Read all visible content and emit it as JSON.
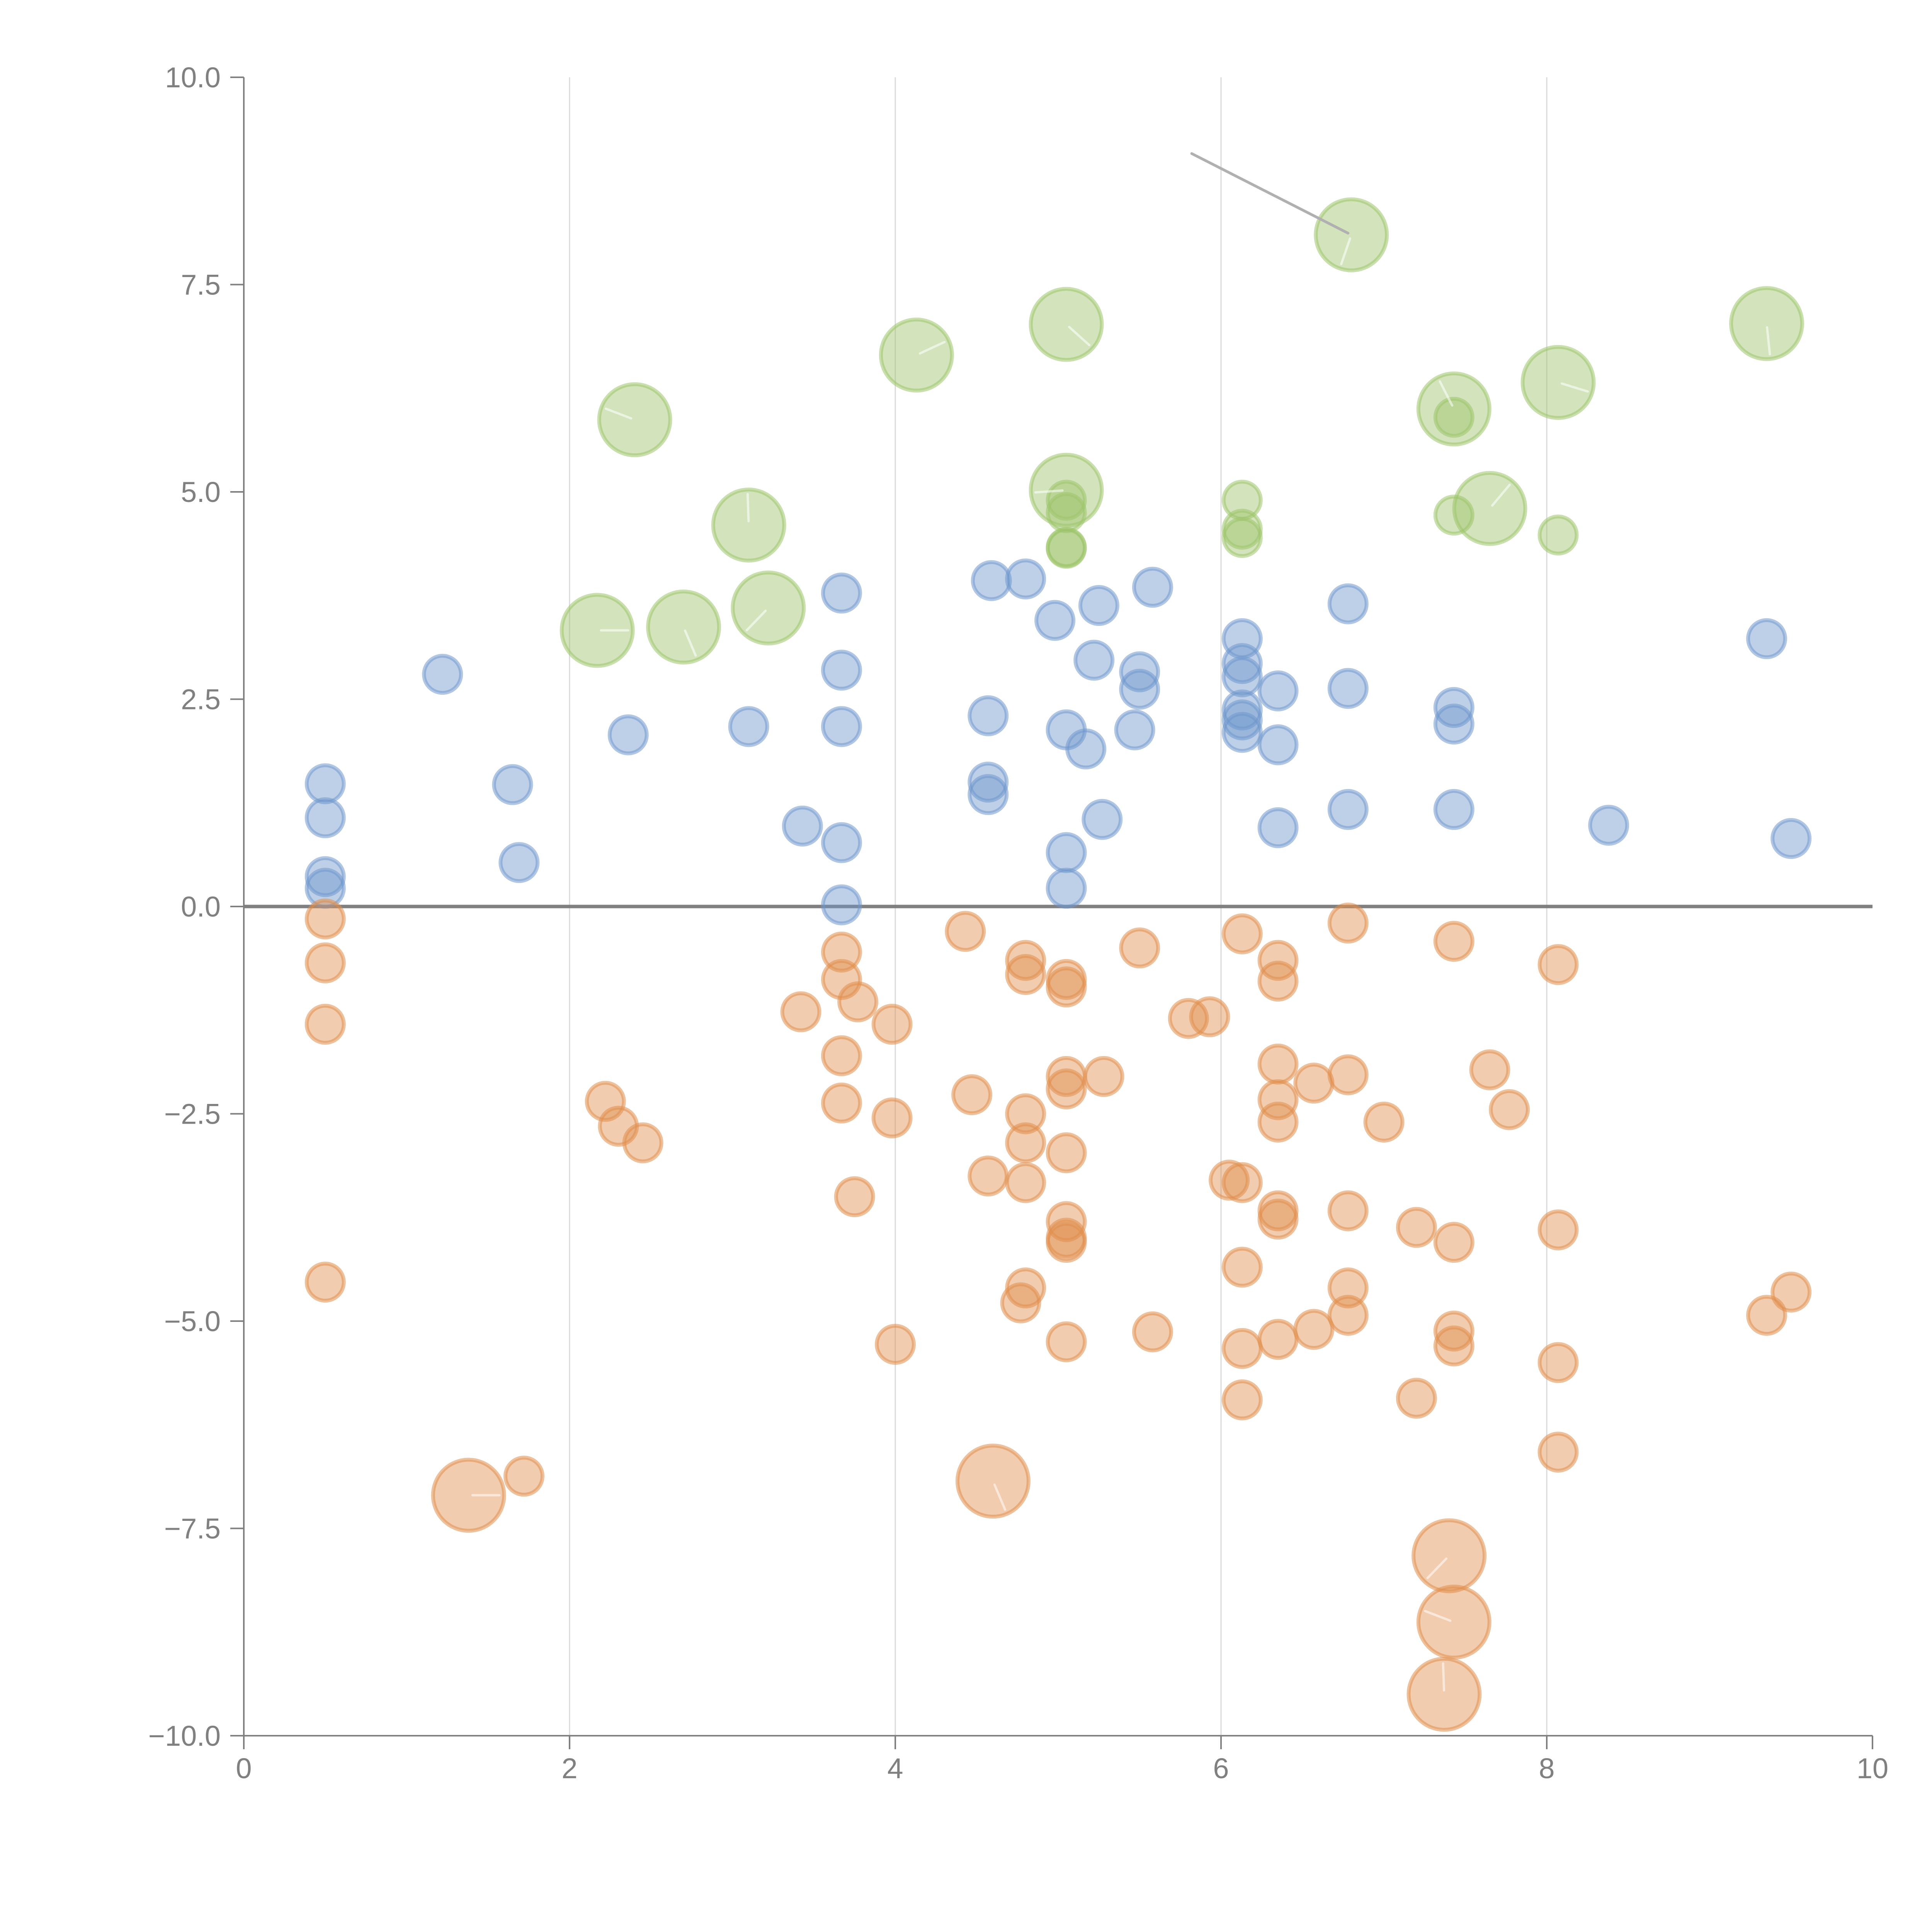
{
  "chart_data": {
    "type": "scatter",
    "title": "",
    "xlabel": "",
    "ylabel": "",
    "xlim": [
      0,
      10
    ],
    "ylim": [
      -10,
      10
    ],
    "x_ticks": [
      0,
      2,
      4,
      6,
      8,
      10
    ],
    "x_tick_labels": [
      "0",
      "2",
      "4",
      "6",
      "8",
      "10"
    ],
    "y_ticks": [
      -10,
      -7.5,
      -5,
      -2.5,
      0,
      2.5,
      5,
      7.5,
      10
    ],
    "y_tick_labels": [
      "−10.0",
      "−7.5",
      "−5.0",
      "−2.5",
      "0.0",
      "2.5",
      "5.0",
      "7.5",
      "10.0"
    ],
    "grid": "vertical",
    "reference_line_y": 0,
    "legend": "none",
    "size_levels": [
      "small",
      "large"
    ],
    "annotation_leader": {
      "from": [
        5.82,
        9.08
      ],
      "to": [
        6.78,
        8.12
      ]
    },
    "series": [
      {
        "name": "green",
        "color": "#9dc46a",
        "points": [
          {
            "x": 2.17,
            "y": 3.33,
            "size": "large"
          },
          {
            "x": 2.7,
            "y": 3.37,
            "size": "large"
          },
          {
            "x": 3.22,
            "y": 3.6,
            "size": "large"
          },
          {
            "x": 2.4,
            "y": 5.87,
            "size": "large"
          },
          {
            "x": 3.1,
            "y": 4.6,
            "size": "large"
          },
          {
            "x": 4.13,
            "y": 6.65,
            "size": "large"
          },
          {
            "x": 5.05,
            "y": 7.02,
            "size": "large"
          },
          {
            "x": 6.8,
            "y": 8.1,
            "size": "large"
          },
          {
            "x": 5.05,
            "y": 5.02,
            "size": "large"
          },
          {
            "x": 7.43,
            "y": 6.0,
            "size": "large"
          },
          {
            "x": 7.65,
            "y": 4.8,
            "size": "large"
          },
          {
            "x": 8.07,
            "y": 6.32,
            "size": "large"
          },
          {
            "x": 9.35,
            "y": 7.03,
            "size": "large"
          },
          {
            "x": 5.05,
            "y": 4.9,
            "size": "small"
          },
          {
            "x": 5.05,
            "y": 4.75,
            "size": "small"
          },
          {
            "x": 5.05,
            "y": 4.33,
            "size": "small"
          },
          {
            "x": 5.05,
            "y": 4.32,
            "size": "small"
          },
          {
            "x": 6.13,
            "y": 4.9,
            "size": "small"
          },
          {
            "x": 6.13,
            "y": 4.55,
            "size": "small"
          },
          {
            "x": 6.13,
            "y": 4.45,
            "size": "small"
          },
          {
            "x": 7.43,
            "y": 5.9,
            "size": "small"
          },
          {
            "x": 7.43,
            "y": 4.72,
            "size": "small"
          },
          {
            "x": 8.07,
            "y": 4.48,
            "size": "small"
          }
        ]
      },
      {
        "name": "blue",
        "color": "#6f97cc",
        "points": [
          {
            "x": 0.5,
            "y": 1.48,
            "size": "small"
          },
          {
            "x": 0.5,
            "y": 1.07,
            "size": "small"
          },
          {
            "x": 0.5,
            "y": 0.36,
            "size": "small"
          },
          {
            "x": 0.5,
            "y": 0.22,
            "size": "small"
          },
          {
            "x": 1.22,
            "y": 2.8,
            "size": "small"
          },
          {
            "x": 1.65,
            "y": 1.47,
            "size": "small"
          },
          {
            "x": 1.69,
            "y": 0.53,
            "size": "small"
          },
          {
            "x": 2.36,
            "y": 2.07,
            "size": "small"
          },
          {
            "x": 3.1,
            "y": 2.17,
            "size": "small"
          },
          {
            "x": 3.43,
            "y": 0.97,
            "size": "small"
          },
          {
            "x": 3.67,
            "y": 3.78,
            "size": "small"
          },
          {
            "x": 3.67,
            "y": 2.85,
            "size": "small"
          },
          {
            "x": 3.67,
            "y": 2.17,
            "size": "small"
          },
          {
            "x": 3.67,
            "y": 0.77,
            "size": "small"
          },
          {
            "x": 3.67,
            "y": 0.02,
            "size": "small"
          },
          {
            "x": 4.59,
            "y": 3.93,
            "size": "small"
          },
          {
            "x": 4.8,
            "y": 3.95,
            "size": "small"
          },
          {
            "x": 4.98,
            "y": 3.45,
            "size": "small"
          },
          {
            "x": 5.25,
            "y": 3.63,
            "size": "small"
          },
          {
            "x": 5.58,
            "y": 3.85,
            "size": "small"
          },
          {
            "x": 5.22,
            "y": 2.97,
            "size": "small"
          },
          {
            "x": 5.5,
            "y": 2.83,
            "size": "small"
          },
          {
            "x": 5.5,
            "y": 2.62,
            "size": "small"
          },
          {
            "x": 4.57,
            "y": 2.3,
            "size": "small"
          },
          {
            "x": 5.05,
            "y": 2.13,
            "size": "small"
          },
          {
            "x": 5.17,
            "y": 1.9,
            "size": "small"
          },
          {
            "x": 5.47,
            "y": 2.13,
            "size": "small"
          },
          {
            "x": 4.57,
            "y": 1.5,
            "size": "small"
          },
          {
            "x": 4.57,
            "y": 1.35,
            "size": "small"
          },
          {
            "x": 5.27,
            "y": 1.05,
            "size": "small"
          },
          {
            "x": 5.05,
            "y": 0.65,
            "size": "small"
          },
          {
            "x": 5.05,
            "y": 0.22,
            "size": "small"
          },
          {
            "x": 6.13,
            "y": 3.23,
            "size": "small"
          },
          {
            "x": 6.13,
            "y": 2.93,
            "size": "small"
          },
          {
            "x": 6.13,
            "y": 2.77,
            "size": "small"
          },
          {
            "x": 6.13,
            "y": 2.37,
            "size": "small"
          },
          {
            "x": 6.13,
            "y": 2.25,
            "size": "small"
          },
          {
            "x": 6.13,
            "y": 2.1,
            "size": "small"
          },
          {
            "x": 6.35,
            "y": 2.6,
            "size": "small"
          },
          {
            "x": 6.35,
            "y": 1.95,
            "size": "small"
          },
          {
            "x": 6.35,
            "y": 0.95,
            "size": "small"
          },
          {
            "x": 6.78,
            "y": 3.65,
            "size": "small"
          },
          {
            "x": 6.78,
            "y": 2.63,
            "size": "small"
          },
          {
            "x": 6.78,
            "y": 1.17,
            "size": "small"
          },
          {
            "x": 7.43,
            "y": 2.4,
            "size": "small"
          },
          {
            "x": 7.43,
            "y": 2.2,
            "size": "small"
          },
          {
            "x": 7.43,
            "y": 1.17,
            "size": "small"
          },
          {
            "x": 8.38,
            "y": 0.98,
            "size": "small"
          },
          {
            "x": 9.35,
            "y": 3.23,
            "size": "small"
          },
          {
            "x": 9.5,
            "y": 0.82,
            "size": "small"
          }
        ]
      },
      {
        "name": "orange",
        "color": "#e08e4c",
        "points": [
          {
            "x": 0.5,
            "y": -0.15,
            "size": "small"
          },
          {
            "x": 0.5,
            "y": -0.68,
            "size": "small"
          },
          {
            "x": 0.5,
            "y": -1.42,
            "size": "small"
          },
          {
            "x": 0.5,
            "y": -4.53,
            "size": "small"
          },
          {
            "x": 1.72,
            "y": -6.87,
            "size": "small"
          },
          {
            "x": 2.22,
            "y": -2.35,
            "size": "small"
          },
          {
            "x": 2.3,
            "y": -2.65,
            "size": "small"
          },
          {
            "x": 2.45,
            "y": -2.85,
            "size": "small"
          },
          {
            "x": 3.42,
            "y": -1.27,
            "size": "small"
          },
          {
            "x": 3.67,
            "y": -0.55,
            "size": "small"
          },
          {
            "x": 3.67,
            "y": -0.88,
            "size": "small"
          },
          {
            "x": 3.77,
            "y": -1.15,
            "size": "small"
          },
          {
            "x": 3.67,
            "y": -1.8,
            "size": "small"
          },
          {
            "x": 3.67,
            "y": -2.37,
            "size": "small"
          },
          {
            "x": 3.75,
            "y": -3.5,
            "size": "small"
          },
          {
            "x": 3.98,
            "y": -1.42,
            "size": "small"
          },
          {
            "x": 3.98,
            "y": -2.55,
            "size": "small"
          },
          {
            "x": 4.0,
            "y": -5.28,
            "size": "small"
          },
          {
            "x": 4.43,
            "y": -0.3,
            "size": "small"
          },
          {
            "x": 4.47,
            "y": -2.27,
            "size": "small"
          },
          {
            "x": 4.57,
            "y": -3.25,
            "size": "small"
          },
          {
            "x": 4.8,
            "y": -0.65,
            "size": "small"
          },
          {
            "x": 4.8,
            "y": -0.82,
            "size": "small"
          },
          {
            "x": 4.8,
            "y": -2.5,
            "size": "small"
          },
          {
            "x": 4.8,
            "y": -2.85,
            "size": "small"
          },
          {
            "x": 4.8,
            "y": -3.33,
            "size": "small"
          },
          {
            "x": 4.8,
            "y": -4.6,
            "size": "small"
          },
          {
            "x": 4.77,
            "y": -4.78,
            "size": "small"
          },
          {
            "x": 5.05,
            "y": -0.88,
            "size": "small"
          },
          {
            "x": 5.05,
            "y": -0.97,
            "size": "small"
          },
          {
            "x": 5.05,
            "y": -2.05,
            "size": "small"
          },
          {
            "x": 5.05,
            "y": -2.2,
            "size": "small"
          },
          {
            "x": 5.05,
            "y": -2.97,
            "size": "small"
          },
          {
            "x": 5.05,
            "y": -3.8,
            "size": "small"
          },
          {
            "x": 5.05,
            "y": -4.0,
            "size": "small"
          },
          {
            "x": 5.05,
            "y": -4.05,
            "size": "small"
          },
          {
            "x": 5.05,
            "y": -5.25,
            "size": "small"
          },
          {
            "x": 5.28,
            "y": -2.05,
            "size": "small"
          },
          {
            "x": 5.5,
            "y": -0.5,
            "size": "small"
          },
          {
            "x": 5.58,
            "y": -5.13,
            "size": "small"
          },
          {
            "x": 5.8,
            "y": -1.35,
            "size": "small"
          },
          {
            "x": 5.93,
            "y": -1.33,
            "size": "small"
          },
          {
            "x": 6.05,
            "y": -3.3,
            "size": "small"
          },
          {
            "x": 6.13,
            "y": -0.33,
            "size": "small"
          },
          {
            "x": 6.13,
            "y": -3.33,
            "size": "small"
          },
          {
            "x": 6.13,
            "y": -4.35,
            "size": "small"
          },
          {
            "x": 6.13,
            "y": -5.33,
            "size": "small"
          },
          {
            "x": 6.13,
            "y": -5.95,
            "size": "small"
          },
          {
            "x": 6.35,
            "y": -0.65,
            "size": "small"
          },
          {
            "x": 6.35,
            "y": -0.9,
            "size": "small"
          },
          {
            "x": 6.35,
            "y": -1.9,
            "size": "small"
          },
          {
            "x": 6.35,
            "y": -2.33,
            "size": "small"
          },
          {
            "x": 6.35,
            "y": -2.6,
            "size": "small"
          },
          {
            "x": 6.35,
            "y": -3.67,
            "size": "small"
          },
          {
            "x": 6.35,
            "y": -3.77,
            "size": "small"
          },
          {
            "x": 6.35,
            "y": -5.22,
            "size": "small"
          },
          {
            "x": 6.57,
            "y": -2.13,
            "size": "small"
          },
          {
            "x": 6.57,
            "y": -5.1,
            "size": "small"
          },
          {
            "x": 6.78,
            "y": -0.2,
            "size": "small"
          },
          {
            "x": 6.78,
            "y": -2.03,
            "size": "small"
          },
          {
            "x": 6.78,
            "y": -3.67,
            "size": "small"
          },
          {
            "x": 6.78,
            "y": -4.6,
            "size": "small"
          },
          {
            "x": 6.78,
            "y": -4.93,
            "size": "small"
          },
          {
            "x": 7.0,
            "y": -2.6,
            "size": "small"
          },
          {
            "x": 7.2,
            "y": -3.87,
            "size": "small"
          },
          {
            "x": 7.2,
            "y": -5.93,
            "size": "small"
          },
          {
            "x": 7.43,
            "y": -0.42,
            "size": "small"
          },
          {
            "x": 7.43,
            "y": -4.05,
            "size": "small"
          },
          {
            "x": 7.43,
            "y": -5.12,
            "size": "small"
          },
          {
            "x": 7.43,
            "y": -5.3,
            "size": "small"
          },
          {
            "x": 7.65,
            "y": -1.97,
            "size": "small"
          },
          {
            "x": 7.77,
            "y": -2.45,
            "size": "small"
          },
          {
            "x": 8.07,
            "y": -0.7,
            "size": "small"
          },
          {
            "x": 8.07,
            "y": -3.9,
            "size": "small"
          },
          {
            "x": 8.07,
            "y": -5.5,
            "size": "small"
          },
          {
            "x": 8.07,
            "y": -6.58,
            "size": "small"
          },
          {
            "x": 9.35,
            "y": -4.93,
            "size": "small"
          },
          {
            "x": 9.5,
            "y": -4.65,
            "size": "small"
          },
          {
            "x": 1.38,
            "y": -7.1,
            "size": "large"
          },
          {
            "x": 4.6,
            "y": -6.93,
            "size": "large"
          },
          {
            "x": 7.4,
            "y": -7.83,
            "size": "large"
          },
          {
            "x": 7.43,
            "y": -8.63,
            "size": "large"
          },
          {
            "x": 7.37,
            "y": -9.5,
            "size": "large"
          }
        ]
      }
    ]
  }
}
